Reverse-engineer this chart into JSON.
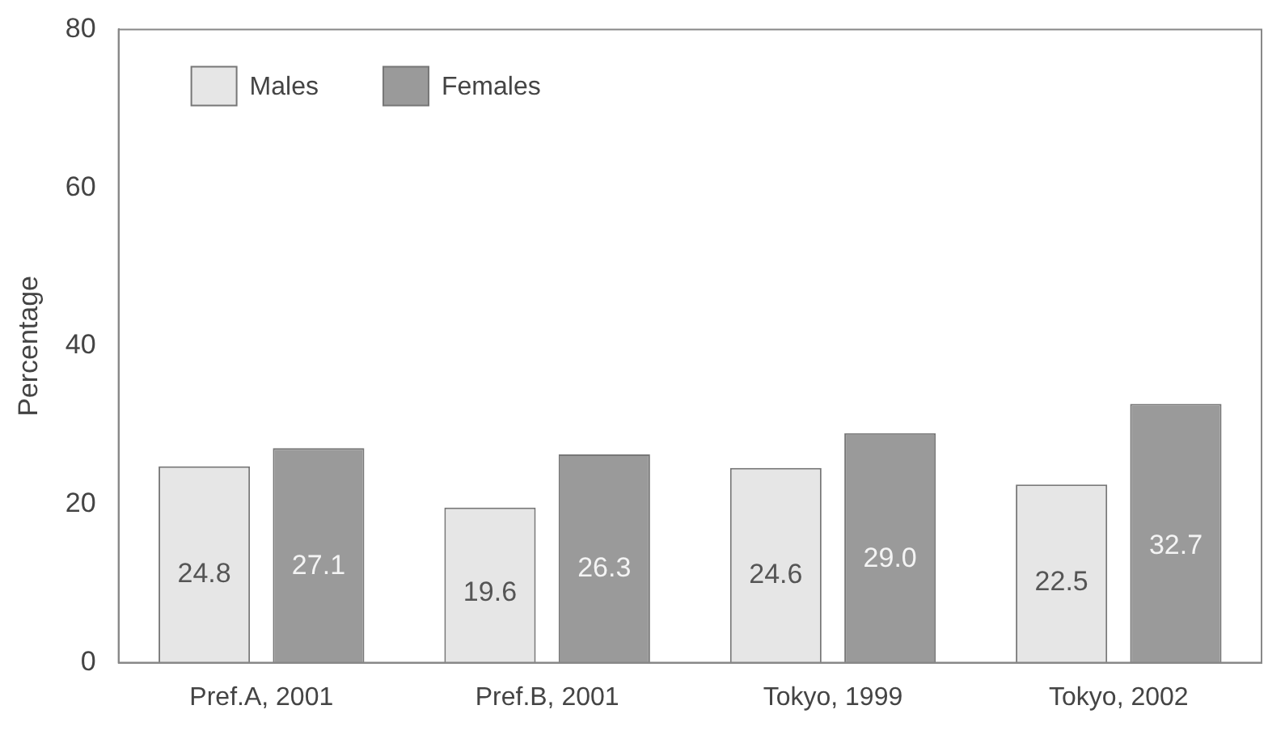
{
  "chart_data": {
    "type": "bar",
    "ylabel": "Percentage",
    "categories": [
      "Pref.A, 2001",
      "Pref.B, 2001",
      "Tokyo, 1999",
      "Tokyo, 2002"
    ],
    "series": [
      {
        "name": "Males",
        "color": "#e6e6e6",
        "values": [
          24.8,
          19.6,
          24.6,
          22.5
        ],
        "value_labels": [
          "24.8",
          "19.6",
          "24.6",
          "22.5"
        ]
      },
      {
        "name": "Females",
        "color": "#9a9a9a",
        "values": [
          27.1,
          26.3,
          29.0,
          32.7
        ],
        "value_labels": [
          "27.1",
          "26.3",
          "29.0",
          "32.7"
        ]
      }
    ],
    "ylim": [
      0,
      80
    ],
    "yticks": [
      0,
      20,
      40,
      60,
      80
    ],
    "grid": false,
    "legend": "top left"
  }
}
